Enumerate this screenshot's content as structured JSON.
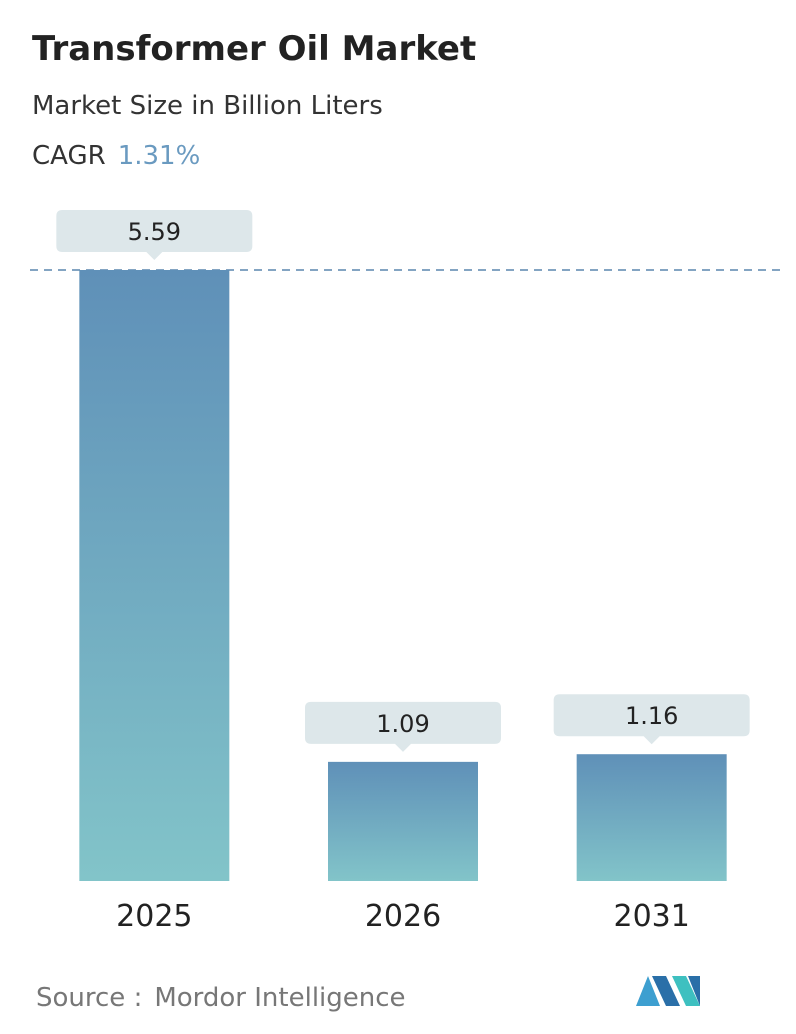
{
  "chart_data": {
    "type": "bar",
    "title": "Transformer Oil Market",
    "subtitle": "Market Size in Billion Liters",
    "cagr_label": "CAGR",
    "cagr_value": "1.31%",
    "categories": [
      "2025",
      "2026",
      "2031"
    ],
    "values": [
      5.59,
      1.09,
      1.16
    ],
    "colors": [
      "#5f90b8",
      "#82c4c9"
    ],
    "reference_line": true,
    "source_label": "Source :",
    "source": "Mordor Intelligence"
  }
}
